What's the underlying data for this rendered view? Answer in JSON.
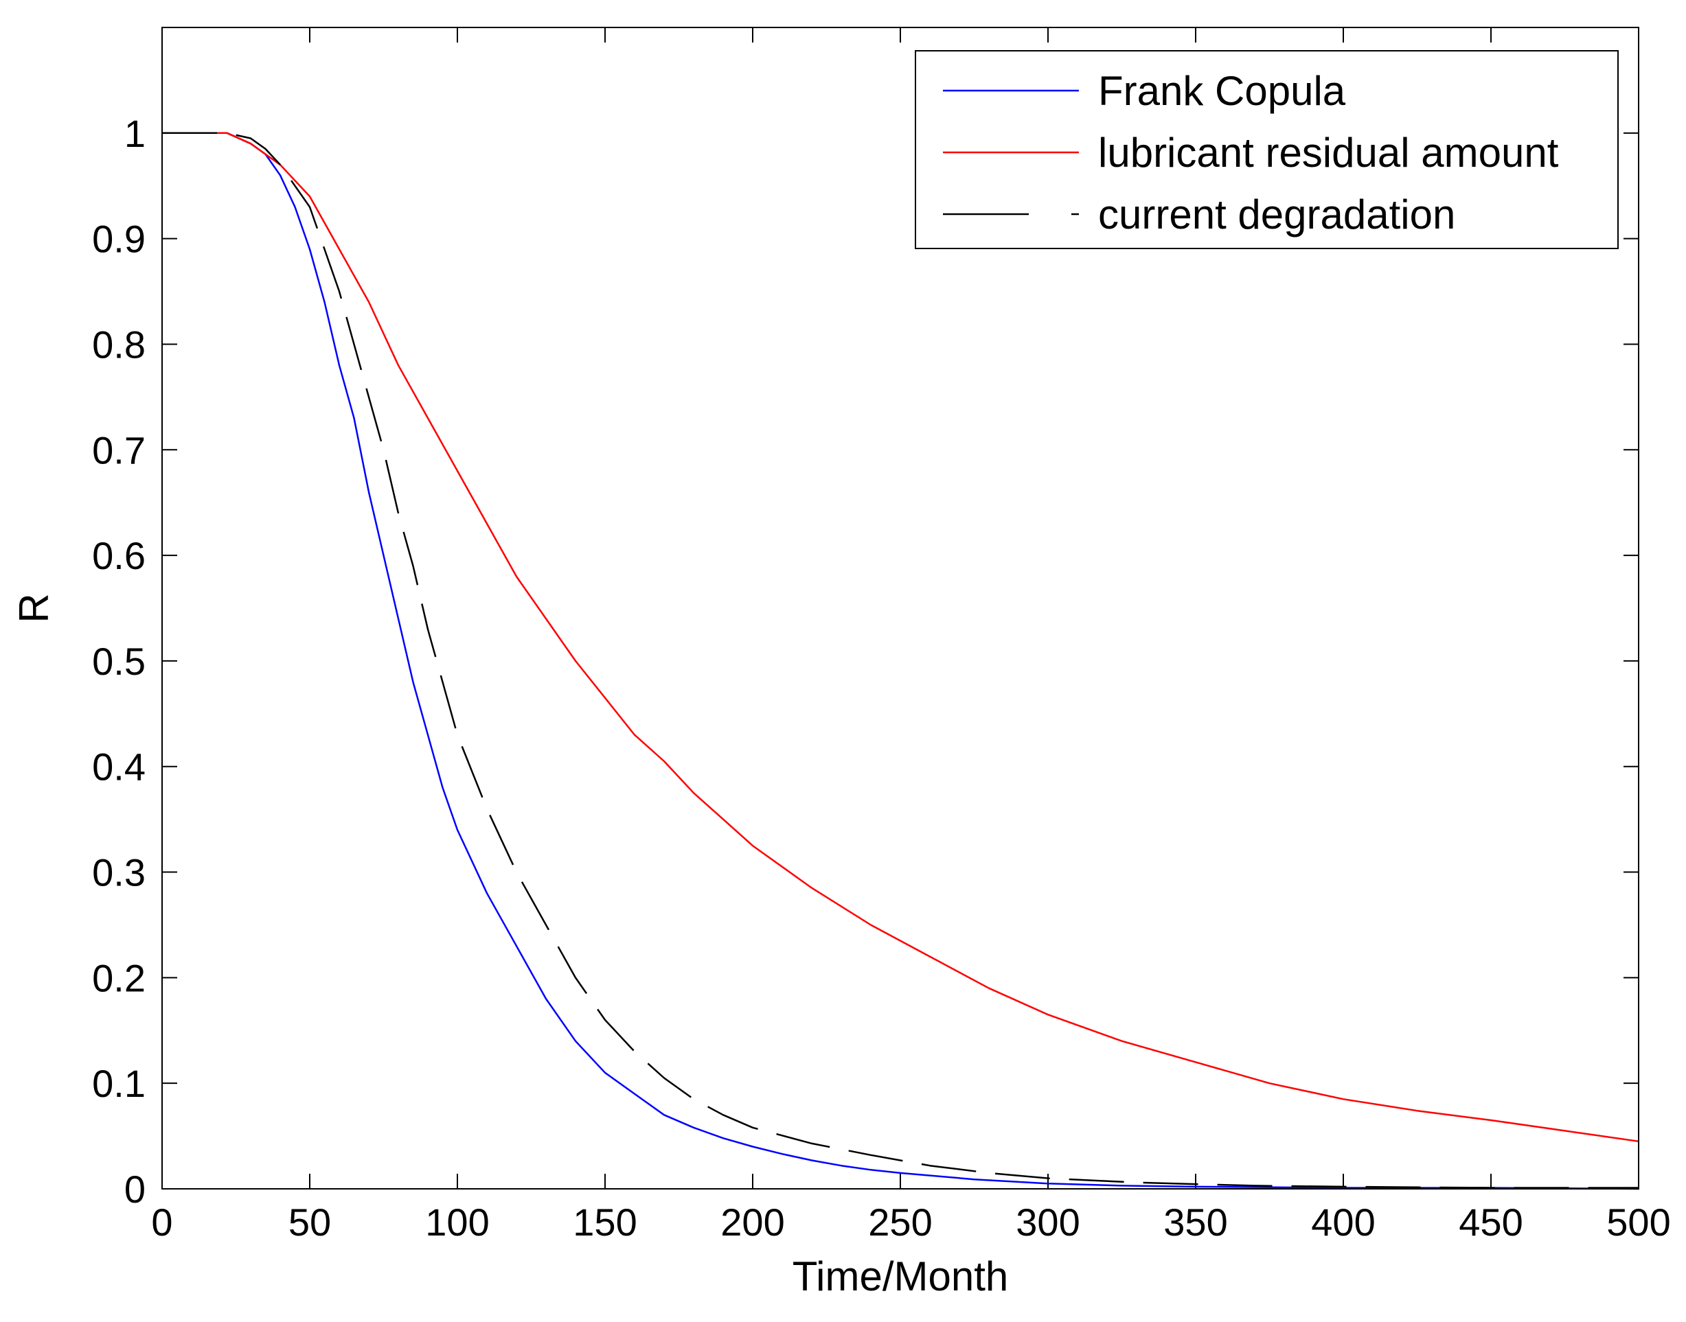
{
  "chart_data": {
    "type": "line",
    "title": "",
    "xlabel": "Time/Month",
    "ylabel": "R",
    "xlim": [
      0,
      500
    ],
    "ylim": [
      0,
      1.1
    ],
    "xticks": [
      0,
      50,
      100,
      150,
      200,
      250,
      300,
      350,
      400,
      450,
      500
    ],
    "yticks": [
      0,
      0.1,
      0.2,
      0.3,
      0.4,
      0.5,
      0.6,
      0.7,
      0.8,
      0.9,
      1
    ],
    "xtick_labels": [
      "0",
      "50",
      "100",
      "150",
      "200",
      "250",
      "300",
      "350",
      "400",
      "450",
      "500"
    ],
    "ytick_labels": [
      "0",
      "0.1",
      "0.2",
      "0.3",
      "0.4",
      "0.5",
      "0.6",
      "0.7",
      "0.8",
      "0.9",
      "1"
    ],
    "grid": false,
    "legend_position": "top-right",
    "series": [
      {
        "name": "Frank Copula",
        "color": "#0000ff",
        "dash": "solid",
        "x": [
          0,
          22,
          30,
          35,
          40,
          45,
          50,
          55,
          60,
          65,
          70,
          75,
          80,
          85,
          90,
          95,
          100,
          110,
          120,
          130,
          140,
          150,
          160,
          170,
          180,
          190,
          200,
          210,
          220,
          230,
          240,
          250,
          275,
          300,
          325,
          350,
          400,
          450,
          500
        ],
        "y": [
          1.0,
          1.0,
          0.99,
          0.98,
          0.96,
          0.93,
          0.89,
          0.84,
          0.78,
          0.73,
          0.66,
          0.6,
          0.54,
          0.48,
          0.43,
          0.38,
          0.34,
          0.28,
          0.23,
          0.18,
          0.14,
          0.11,
          0.09,
          0.07,
          0.058,
          0.048,
          0.04,
          0.033,
          0.027,
          0.022,
          0.018,
          0.015,
          0.009,
          0.005,
          0.003,
          0.002,
          0.001,
          0.001,
          0.0
        ]
      },
      {
        "name": "lubricant residual amount",
        "color": "#ff0000",
        "dash": "solid",
        "x": [
          0,
          22,
          30,
          40,
          50,
          60,
          70,
          80,
          90,
          100,
          110,
          120,
          130,
          140,
          150,
          160,
          170,
          180,
          190,
          200,
          220,
          240,
          260,
          280,
          300,
          325,
          350,
          375,
          400,
          425,
          450,
          475,
          500
        ],
        "y": [
          1.0,
          1.0,
          0.99,
          0.97,
          0.94,
          0.89,
          0.84,
          0.78,
          0.73,
          0.68,
          0.63,
          0.58,
          0.54,
          0.5,
          0.465,
          0.43,
          0.405,
          0.375,
          0.35,
          0.325,
          0.285,
          0.25,
          0.22,
          0.19,
          0.165,
          0.14,
          0.12,
          0.1,
          0.085,
          0.074,
          0.065,
          0.055,
          0.045
        ]
      },
      {
        "name": "current degradation",
        "color": "#000000",
        "dash": "dashed",
        "x": [
          0,
          22,
          30,
          35,
          40,
          50,
          55,
          60,
          65,
          70,
          75,
          80,
          85,
          90,
          95,
          100,
          110,
          120,
          130,
          140,
          150,
          160,
          170,
          180,
          190,
          200,
          220,
          240,
          260,
          280,
          300,
          330,
          370,
          400,
          450,
          500
        ],
        "y": [
          1.0,
          1.0,
          0.995,
          0.985,
          0.97,
          0.93,
          0.89,
          0.85,
          0.8,
          0.75,
          0.7,
          0.64,
          0.59,
          0.53,
          0.48,
          0.43,
          0.36,
          0.3,
          0.25,
          0.2,
          0.16,
          0.13,
          0.105,
          0.085,
          0.07,
          0.058,
          0.043,
          0.032,
          0.022,
          0.015,
          0.01,
          0.006,
          0.003,
          0.002,
          0.001,
          0.001
        ]
      }
    ]
  }
}
